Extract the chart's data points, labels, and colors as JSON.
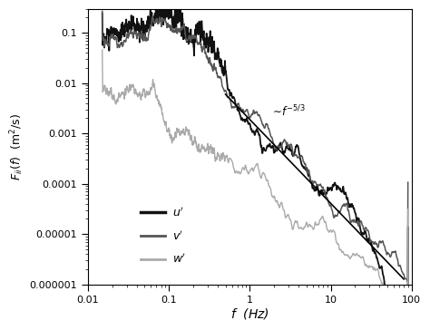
{
  "title": "",
  "xlabel": "$f$  (Hz)",
  "ylabel": "$F_{ii}(f)$  (m$^2$/s)",
  "xlim": [
    0.01,
    100
  ],
  "ylim": [
    1e-06,
    0.3
  ],
  "yticks": [
    1e-06,
    1e-05,
    0.0001,
    0.001,
    0.01,
    0.1
  ],
  "xticks": [
    0.01,
    0.1,
    1,
    10,
    100
  ],
  "legend_labels": [
    "$u'$",
    "$v'$",
    "$w'$"
  ],
  "u_color": "#111111",
  "v_color": "#555555",
  "w_color": "#aaaaaa",
  "ref_line_start_f": 0.5,
  "ref_line_end_f": 80,
  "ref_line_start_psd": 0.006,
  "background_color": "#ffffff",
  "seed": 42
}
